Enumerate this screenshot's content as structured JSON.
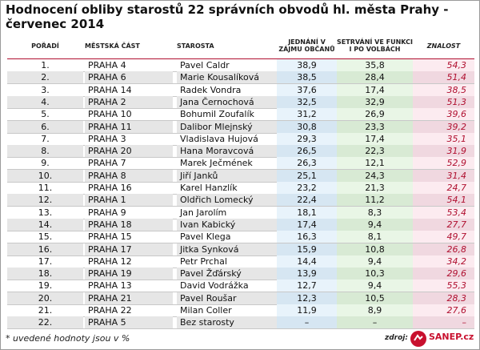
{
  "header": {
    "title": "Hodnocení obliby starostů 22 správních obvodů hl. města Prahy - červenec 2014"
  },
  "table": {
    "columns": [
      "POŘADÍ",
      "MĚSTSKÁ ČÁST",
      "STAROSTA",
      "JEDNÁNÍ V ZÁJMU OBČANŮ",
      "SETRVÁNÍ VE FUNKCI I PO VOLBÁCH",
      "ZNALOST"
    ],
    "rows": [
      [
        "1.",
        "PRAHA 4",
        "Pavel Caldr",
        "38,9",
        "35,8",
        "54,3"
      ],
      [
        "2.",
        "PRAHA 6",
        "Marie Kousalíková",
        "38,5",
        "28,4",
        "51,4"
      ],
      [
        "3.",
        "PRAHA 14",
        "Radek Vondra",
        "37,6",
        "17,4",
        "38,5"
      ],
      [
        "4.",
        "PRAHA 2",
        "Jana  Černochová",
        "32,5",
        "32,9",
        "51,3"
      ],
      [
        "5.",
        "PRAHA 10",
        "Bohumil Zoufalík",
        "31,2",
        "26,9",
        "39,6"
      ],
      [
        "6.",
        "PRAHA 11",
        "Dalibor Mlejnský",
        "30,8",
        "23,3",
        "39,2"
      ],
      [
        "7.",
        "PRAHA 3",
        "Vladislava Hujová",
        "29,3",
        "17,4",
        "35,1"
      ],
      [
        "8.",
        "PRAHA 20",
        "Hana Moravcová",
        "26,5",
        "22,3",
        "31,9"
      ],
      [
        "9.",
        "PRAHA 7",
        "Marek Ječmének",
        "26,3",
        "12,1",
        "52,9"
      ],
      [
        "10.",
        "PRAHA 8",
        "Jiří Janků",
        "25,1",
        "24,3",
        "31,4"
      ],
      [
        "11.",
        "PRAHA 16",
        "Karel Hanzlík",
        "23,2",
        "21,3",
        "24,7"
      ],
      [
        "12.",
        "PRAHA 1",
        "Oldřich Lomecký",
        "22,4",
        "11,2",
        "54,1"
      ],
      [
        "13.",
        "PRAHA 9",
        "Jan Jarolím",
        "18,1",
        "8,3",
        "53,4"
      ],
      [
        "14.",
        "PRAHA 18",
        "Ivan Kabický",
        "17,4",
        "9,4",
        "27,7"
      ],
      [
        "15.",
        "PRAHA 15",
        "Pavel Klega",
        "16,3",
        "8,1",
        "49,7"
      ],
      [
        "16.",
        "PRAHA 17",
        "Jitka Synková",
        "15,9",
        "10,8",
        "26,8"
      ],
      [
        "17.",
        "PRAHA 12",
        "Petr Prchal",
        "14,4",
        "9,4",
        "34,2"
      ],
      [
        "18.",
        "PRAHA 19",
        "Pavel Žďárský",
        "13,9",
        "10,3",
        "29,6"
      ],
      [
        "19.",
        "PRAHA 13",
        "David Vodrážka",
        "12,7",
        "9,4",
        "55,3"
      ],
      [
        "20.",
        "PRAHA 21",
        "Pavel Roušar",
        "12,3",
        "10,5",
        "28,3"
      ],
      [
        "21.",
        "PRAHA 22",
        "Milan Coller",
        "11,9",
        "8,9",
        "27,6"
      ],
      [
        "22.",
        "PRAHA 5",
        "Bez starosty",
        "–",
        "–",
        "–"
      ]
    ]
  },
  "footer": {
    "note": "* uvedené hodnoty jsou v %",
    "source_label": "zdroj:",
    "logo": "SANEP.cz"
  }
}
